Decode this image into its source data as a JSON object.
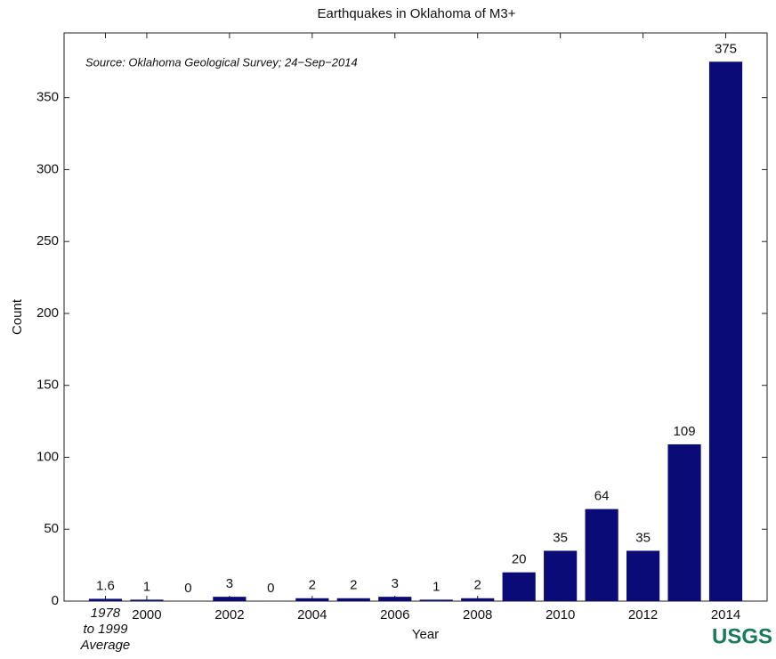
{
  "chart_data": {
    "type": "bar",
    "title": "Earthquakes in Oklahoma of M3+",
    "annotation": "Source: Oklahoma Geological Survey; 24−Sep−2014",
    "x_label": "Year",
    "y_label": "Count",
    "logo": "USGS",
    "categories": [
      "1978\nto 1999\nAverage",
      "2000",
      null,
      "2002",
      null,
      "2004",
      null,
      "2006",
      null,
      "2008",
      null,
      "2010",
      null,
      "2012",
      null,
      "2014"
    ],
    "values": [
      1.6,
      1,
      0,
      3,
      0,
      2,
      2,
      3,
      1,
      2,
      20,
      35,
      64,
      35,
      109,
      375
    ],
    "color": "#0b0b78",
    "ylim": [
      0,
      395
    ],
    "yticks": [
      0,
      50,
      100,
      150,
      200,
      250,
      300,
      350
    ],
    "grid": false
  }
}
